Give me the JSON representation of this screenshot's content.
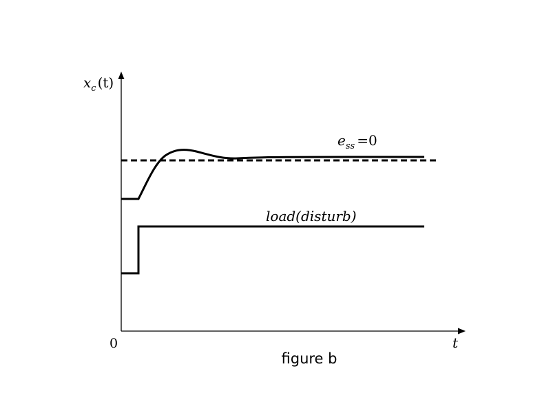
{
  "figure": {
    "caption": "figure b",
    "axes": {
      "y_label_var": "x",
      "y_label_sub": "c",
      "y_label_args": "(t)",
      "x_label": "t",
      "origin_label": "0"
    },
    "annotations": {
      "ess_var": "e",
      "ess_sub": "ss",
      "ess_eq": "=0",
      "load_label": "load",
      "load_args": "(disturb)"
    }
  },
  "colors": {
    "line": "#000000",
    "background": "#ffffff"
  }
}
